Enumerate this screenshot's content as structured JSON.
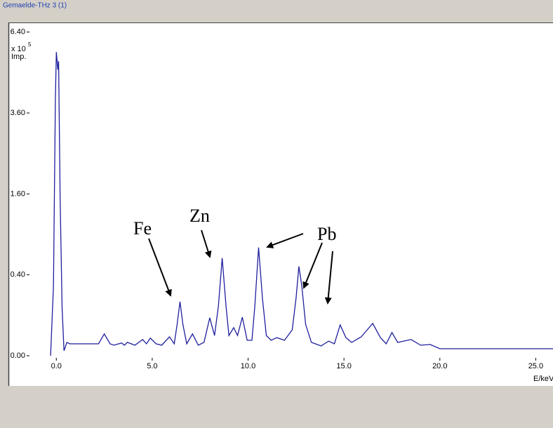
{
  "window_title": "Gemaelde-THz 3 (1)",
  "chart_data": {
    "type": "line",
    "y_unit": "x 10",
    "y_unit_exponent": "5",
    "y_label": "Imp.",
    "x_label": "E/keV",
    "yscale": "sqrt",
    "xlim": [
      -1.4,
      25.9
    ],
    "ylim": [
      0,
      6.7
    ],
    "xticks": [
      {
        "value": 0,
        "label": "0.0"
      },
      {
        "value": 5,
        "label": "5.0"
      },
      {
        "value": 10,
        "label": "10.0"
      },
      {
        "value": 15,
        "label": "15.0"
      },
      {
        "value": 20,
        "label": "20.0"
      },
      {
        "value": 25,
        "label": "25.0"
      }
    ],
    "yticks": [
      {
        "value": 0,
        "label": "0.00"
      },
      {
        "value": 0.4,
        "label": "0.40"
      },
      {
        "value": 1.6,
        "label": "1.60"
      },
      {
        "value": 3.6,
        "label": "3.60"
      },
      {
        "value": 6.4,
        "label": "6.40"
      }
    ],
    "annotations": [
      "Fe",
      "Zn",
      "Pb"
    ],
    "x": [
      -0.3,
      -0.15,
      -0.05,
      0.0,
      0.08,
      0.12,
      0.2,
      0.3,
      0.4,
      0.55,
      0.7,
      2.2,
      2.5,
      2.8,
      3.0,
      3.4,
      3.55,
      3.7,
      4.1,
      4.5,
      4.7,
      4.9,
      5.2,
      5.5,
      5.9,
      6.15,
      6.3,
      6.45,
      6.6,
      6.8,
      7.1,
      7.4,
      7.7,
      8.0,
      8.25,
      8.45,
      8.65,
      8.85,
      9.0,
      9.25,
      9.45,
      9.7,
      9.95,
      10.2,
      10.35,
      10.55,
      10.75,
      10.95,
      11.2,
      11.5,
      11.9,
      12.3,
      12.5,
      12.65,
      12.8,
      13.0,
      13.3,
      13.8,
      14.2,
      14.5,
      14.8,
      15.1,
      15.4,
      15.9,
      16.2,
      16.5,
      16.9,
      17.2,
      17.5,
      17.8,
      18.5,
      19.0,
      19.5,
      20.0,
      25.9
    ],
    "series": [
      {
        "color": "#1f1f9e",
        "values": [
          0,
          0.3,
          4.0,
          5.63,
          5.0,
          5.3,
          1.5,
          0.14,
          0.0015,
          0.0109,
          0.0087,
          0.0087,
          0.029,
          0.0087,
          0.0068,
          0.0098,
          0.0068,
          0.011,
          0.0068,
          0.016,
          0.0087,
          0.019,
          0.0087,
          0.0068,
          0.022,
          0.0087,
          0.06,
          0.179,
          0.06,
          0.0087,
          0.029,
          0.0068,
          0.011,
          0.088,
          0.025,
          0.15,
          0.583,
          0.15,
          0.025,
          0.048,
          0.025,
          0.091,
          0.0146,
          0.0146,
          0.15,
          0.716,
          0.2,
          0.025,
          0.0146,
          0.02,
          0.0146,
          0.041,
          0.2,
          0.487,
          0.3,
          0.06,
          0.011,
          0.0059,
          0.013,
          0.0087,
          0.058,
          0.02,
          0.0109,
          0.022,
          0.04,
          0.064,
          0.02,
          0.0087,
          0.033,
          0.0109,
          0.016,
          0.0068,
          0.0077,
          0.003,
          0.003
        ]
      }
    ]
  }
}
